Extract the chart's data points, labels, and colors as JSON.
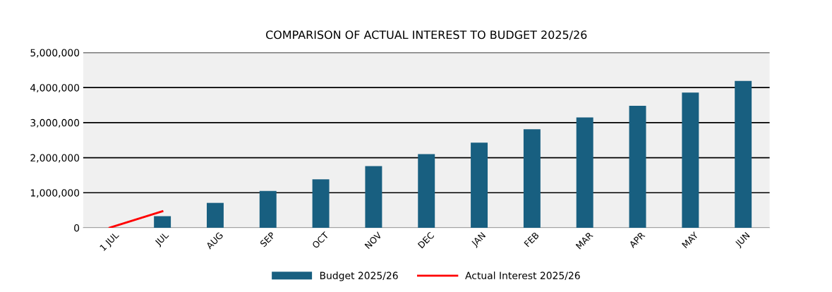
{
  "chart_data": {
    "type": "bar",
    "title": "COMPARISON OF ACTUAL INTEREST TO BUDGET 2025/26",
    "categories": [
      "1 JUL",
      "JUL",
      "AUG",
      "SEP",
      "OCT",
      "NOV",
      "DEC",
      "JAN",
      "FEB",
      "MAR",
      "APR",
      "MAY",
      "JUN"
    ],
    "series": [
      {
        "name": "Budget 2025/26",
        "color": "#185f80",
        "values": [
          null,
          330000,
          710000,
          1050000,
          1380000,
          1760000,
          2100000,
          2430000,
          2810000,
          3150000,
          3480000,
          3860000,
          4190000
        ]
      },
      {
        "name": "Actual Interest 2025/26",
        "type": "line",
        "color": "#ff0000",
        "values": [
          0,
          470000,
          null,
          null,
          null,
          null,
          null,
          null,
          null,
          null,
          null,
          null,
          null
        ]
      }
    ],
    "ylim": [
      0,
      5000000
    ],
    "yticks": [
      {
        "value": 0,
        "label": "0"
      },
      {
        "value": 1000000,
        "label": "1,000,000"
      },
      {
        "value": 2000000,
        "label": "2,000,000"
      },
      {
        "value": 3000000,
        "label": "3,000,000"
      },
      {
        "value": 4000000,
        "label": "4,000,000"
      },
      {
        "value": 5000000,
        "label": "5,000,000"
      }
    ],
    "grid": "y",
    "legend": "bottom"
  }
}
